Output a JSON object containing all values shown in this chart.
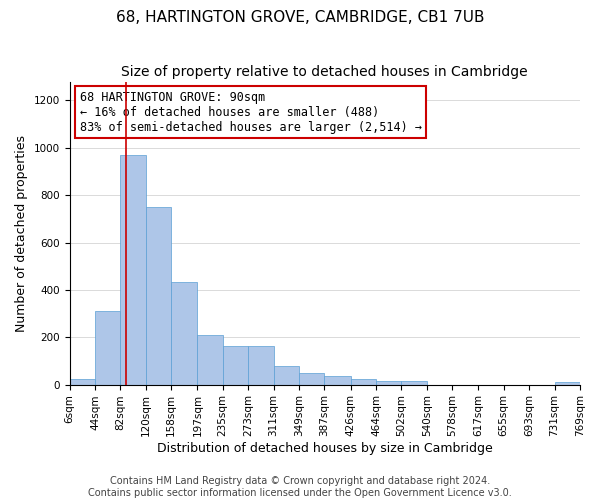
{
  "title": "68, HARTINGTON GROVE, CAMBRIDGE, CB1 7UB",
  "subtitle": "Size of property relative to detached houses in Cambridge",
  "xlabel": "Distribution of detached houses by size in Cambridge",
  "ylabel": "Number of detached properties",
  "bin_edges": [
    6,
    44,
    82,
    120,
    158,
    197,
    235,
    273,
    311,
    349,
    387,
    426,
    464,
    502,
    540,
    578,
    617,
    655,
    693,
    731,
    769
  ],
  "bar_heights": [
    25,
    310,
    970,
    750,
    435,
    210,
    165,
    165,
    80,
    50,
    35,
    25,
    15,
    15,
    0,
    0,
    0,
    0,
    0,
    10
  ],
  "bar_color": "#aec6e8",
  "bar_edge_color": "#5a9fd4",
  "property_size": 90,
  "vline_color": "#cc0000",
  "ylim": [
    0,
    1280
  ],
  "annotation_text": "68 HARTINGTON GROVE: 90sqm\n← 16% of detached houses are smaller (488)\n83% of semi-detached houses are larger (2,514) →",
  "annotation_box_color": "#ffffff",
  "annotation_box_edge": "#cc0000",
  "footer_line1": "Contains HM Land Registry data © Crown copyright and database right 2024.",
  "footer_line2": "Contains public sector information licensed under the Open Government Licence v3.0.",
  "title_fontsize": 11,
  "subtitle_fontsize": 10,
  "xlabel_fontsize": 9,
  "ylabel_fontsize": 9,
  "tick_fontsize": 7.5,
  "footer_fontsize": 7
}
